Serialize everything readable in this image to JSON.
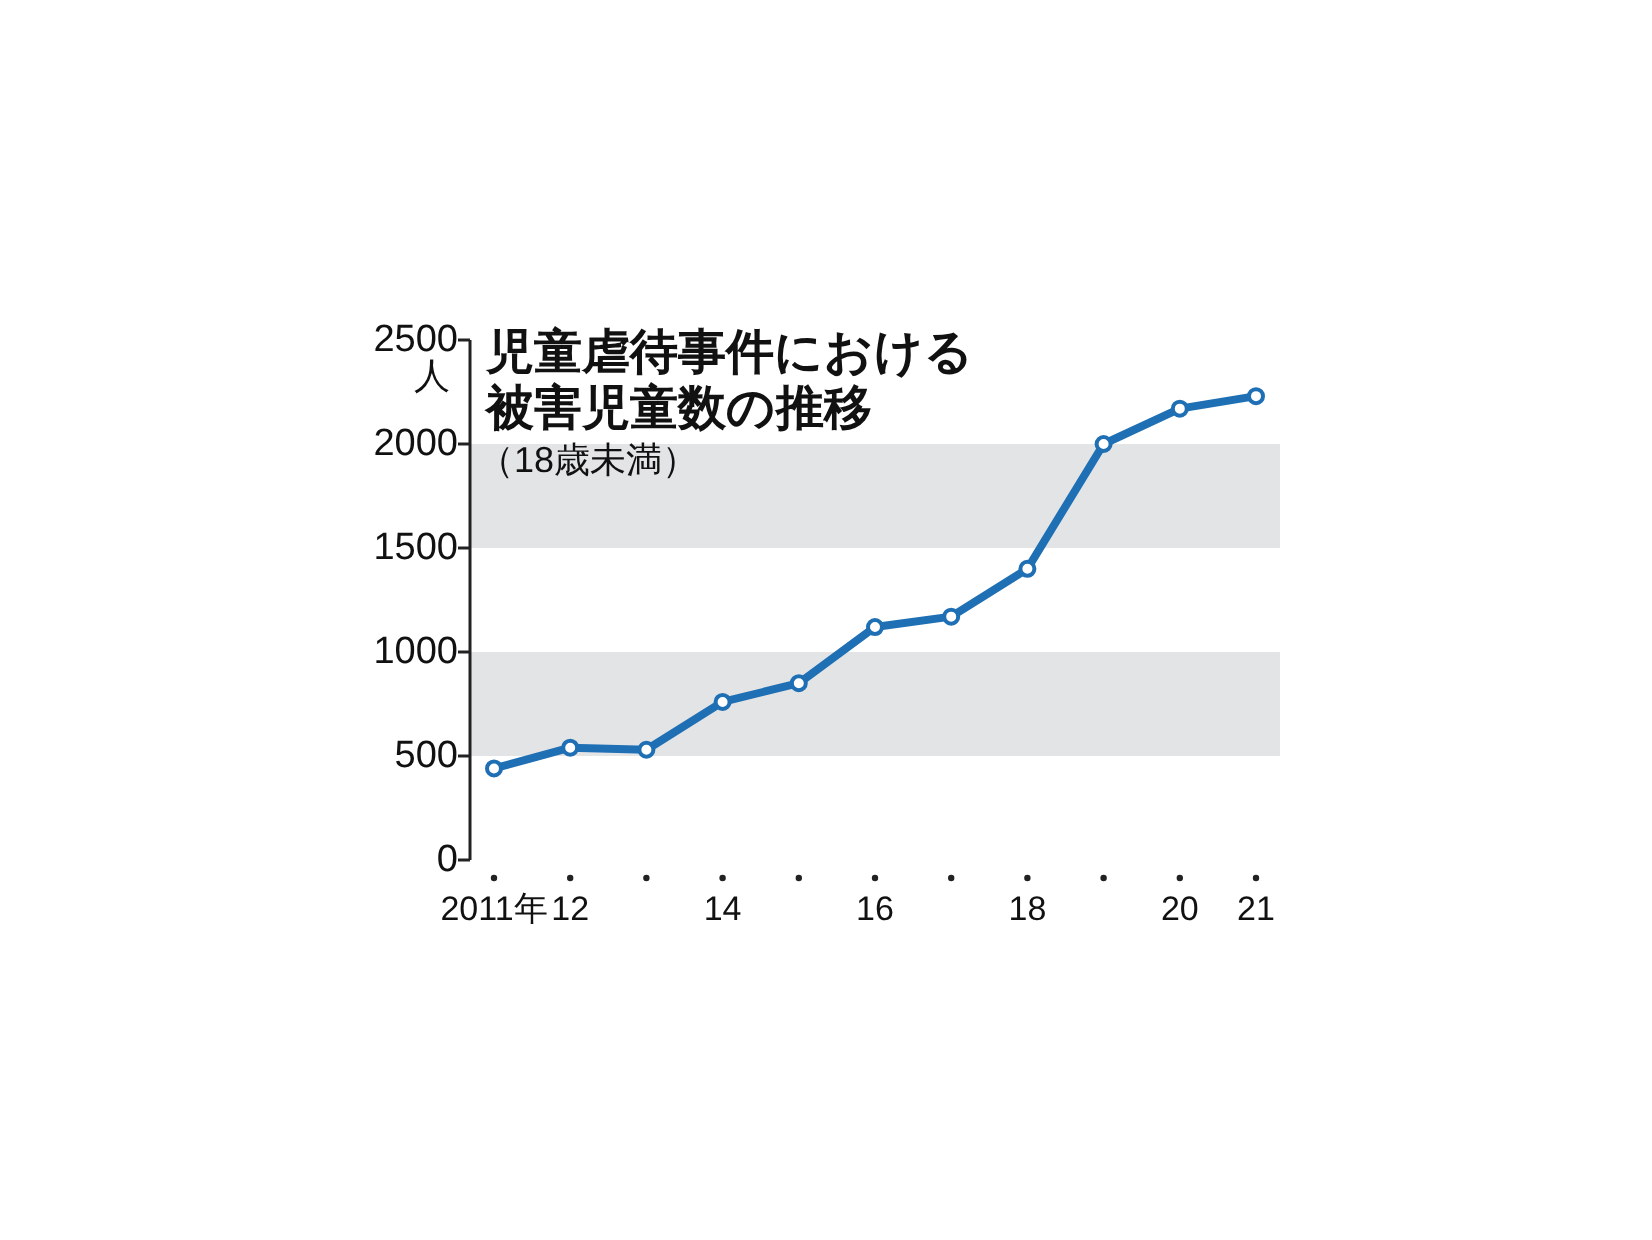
{
  "chart_data": {
    "type": "line",
    "title": "児童虐待事件における被害児童数の推移",
    "subtitle": "（18歳未満）",
    "ylabel": "人",
    "categories": [
      "2011年",
      "12",
      null,
      "14",
      null,
      "16",
      null,
      "18",
      null,
      "20",
      "21"
    ],
    "series": [
      {
        "color": "#1f6fb4",
        "values": [
          440,
          540,
          530,
          760,
          850,
          1120,
          1170,
          1400,
          2000,
          2170,
          2230
        ]
      }
    ],
    "ylim": [
      0,
      2500
    ],
    "yticks": [
      0,
      500,
      1000,
      1500,
      2000,
      2500
    ],
    "bands": [
      {
        "axis": "y",
        "from": 500,
        "to": 1000,
        "color": "#e3e4e6"
      },
      {
        "axis": "y",
        "from": 1500,
        "to": 2000,
        "color": "#e3e4e6"
      }
    ],
    "marker": "circle",
    "grid": false
  }
}
